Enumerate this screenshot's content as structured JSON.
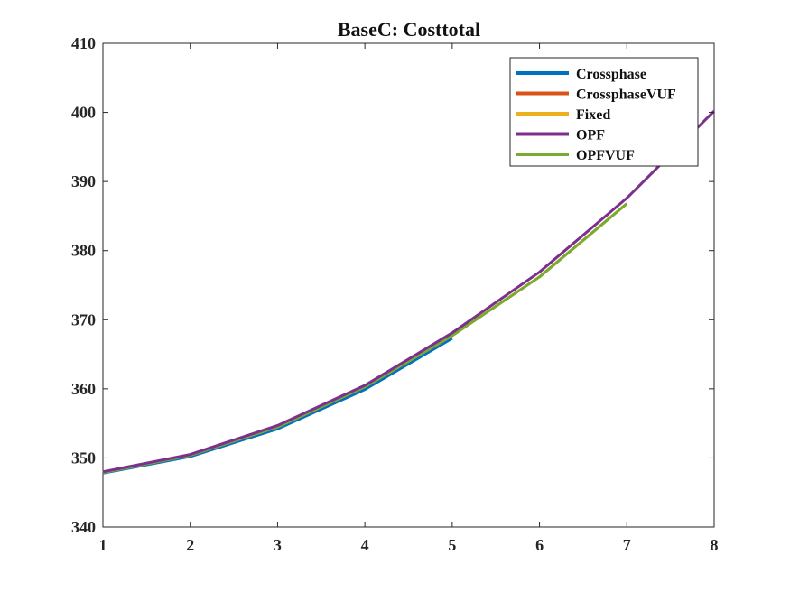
{
  "chart_data": {
    "type": "line",
    "title": "BaseC: Costtotal",
    "xlabel": "",
    "ylabel": "",
    "xlim": [
      1,
      8
    ],
    "ylim": [
      340,
      410
    ],
    "x_ticks": [
      "1",
      "2",
      "3",
      "4",
      "5",
      "6",
      "7",
      "8"
    ],
    "y_ticks": [
      "340",
      "350",
      "360",
      "370",
      "380",
      "390",
      "400",
      "410"
    ],
    "grid": false,
    "legend_position": "top-right",
    "series": [
      {
        "name": "Crossphase",
        "color": "#0072BD",
        "x": [
          1,
          2,
          3,
          4,
          5
        ],
        "values": [
          347.8,
          350.2,
          354.2,
          359.9,
          367.3
        ]
      },
      {
        "name": "CrossphaseVUF",
        "color": "#D95319",
        "x": [
          1,
          2,
          3,
          4,
          5,
          6,
          7
        ],
        "values": [
          347.9,
          350.4,
          354.5,
          360.3,
          367.7,
          376.2,
          386.8
        ]
      },
      {
        "name": "Fixed",
        "color": "#EDB120",
        "x": [
          1,
          2,
          3,
          4,
          5,
          6,
          7
        ],
        "values": [
          347.9,
          350.4,
          354.5,
          360.3,
          367.7,
          376.2,
          386.8
        ]
      },
      {
        "name": "OPF",
        "color": "#7E2F8E",
        "x": [
          1,
          2,
          3,
          4,
          5,
          6,
          7,
          8
        ],
        "values": [
          348.0,
          350.5,
          354.7,
          360.5,
          368.1,
          376.9,
          387.6,
          400.2
        ]
      },
      {
        "name": "OPFVUF",
        "color": "#77AC30",
        "x": [
          1,
          2,
          3,
          4,
          5,
          6,
          7
        ],
        "values": [
          347.9,
          350.4,
          354.5,
          360.3,
          367.7,
          376.2,
          386.8
        ]
      }
    ]
  }
}
